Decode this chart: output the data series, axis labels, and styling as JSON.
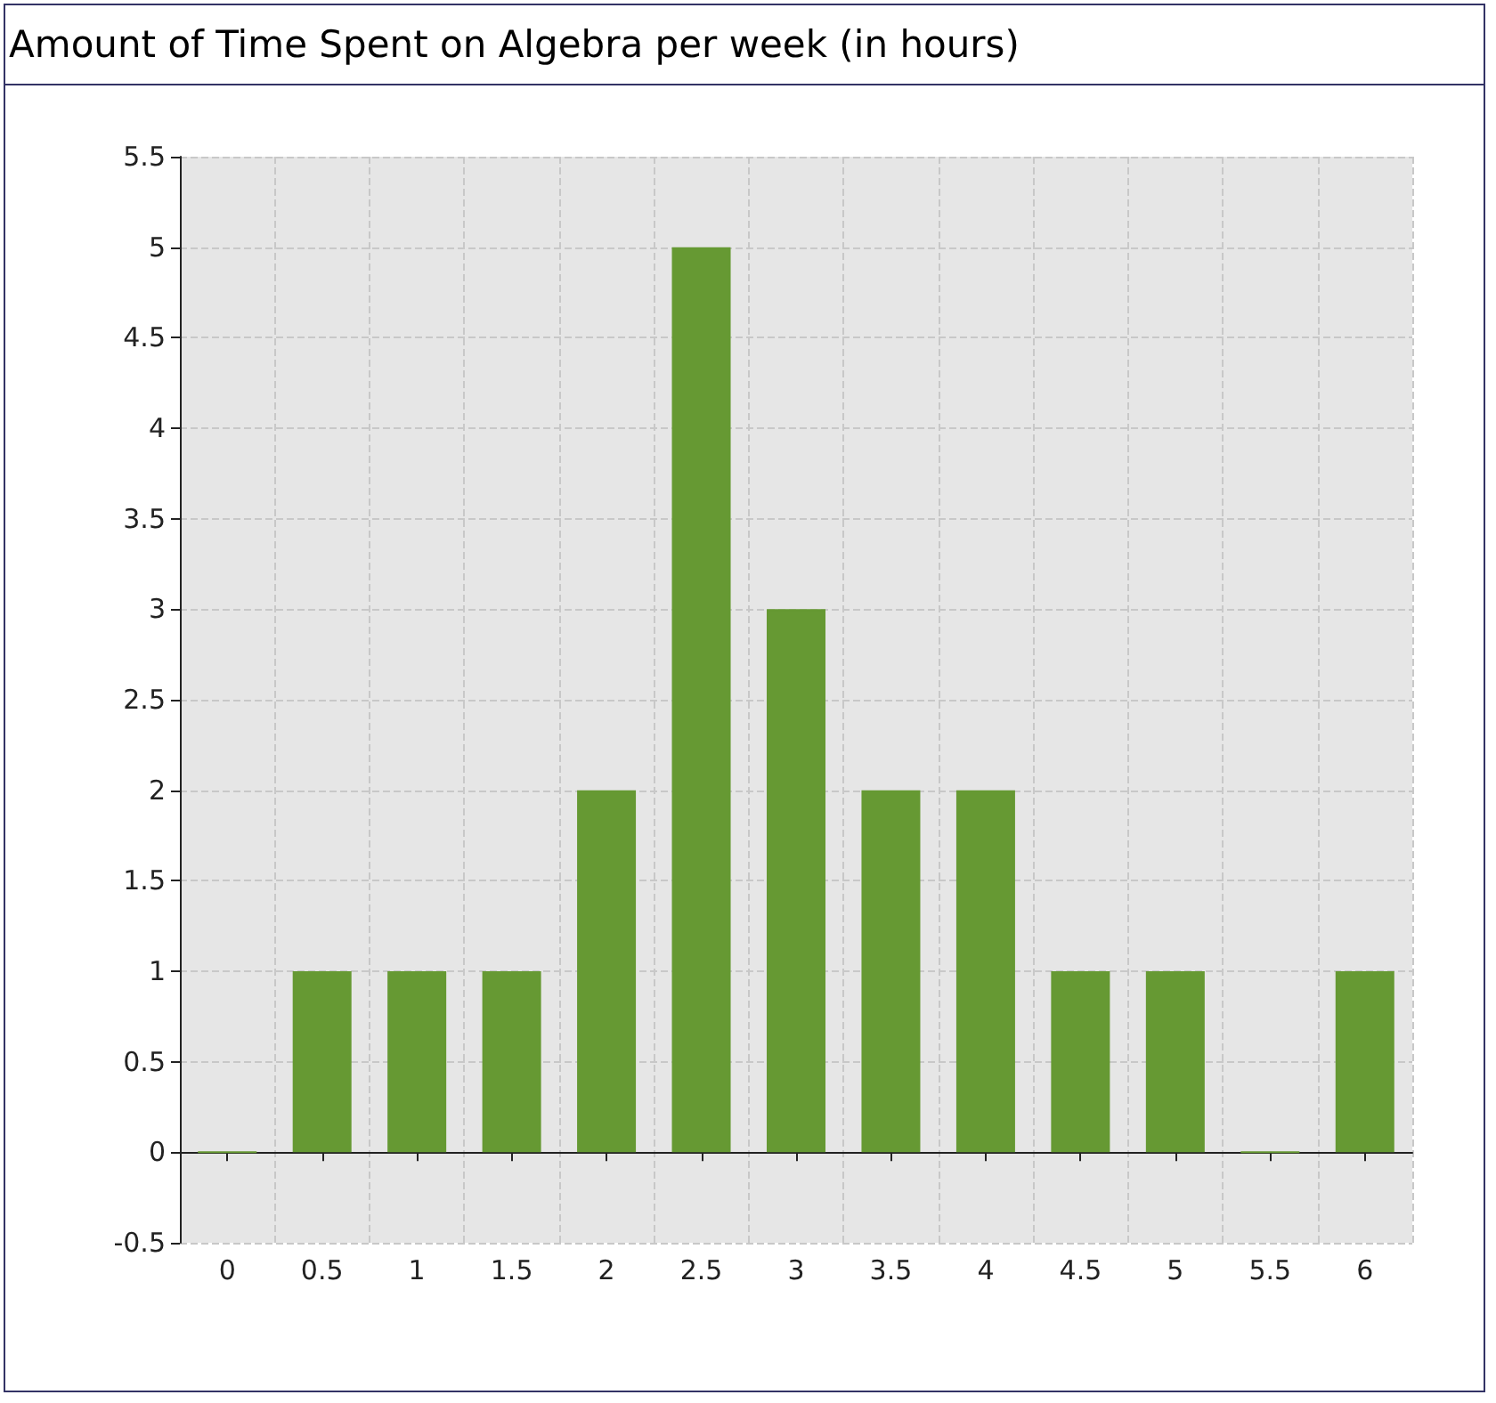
{
  "chart_data": {
    "type": "bar",
    "title": "Amount of Time Spent on Algebra per week (in hours)",
    "categories": [
      "0",
      "0.5",
      "1",
      "1.5",
      "2",
      "2.5",
      "3",
      "3.5",
      "4",
      "4.5",
      "5",
      "5.5",
      "6"
    ],
    "values": [
      0,
      1,
      1,
      1,
      2,
      5,
      3,
      2,
      2,
      1,
      1,
      0,
      1
    ],
    "color": "#669933",
    "ylim": [
      -0.5,
      5.5
    ],
    "yticks": [
      -0.5,
      0,
      0.5,
      1,
      1.5,
      2,
      2.5,
      3,
      3.5,
      4,
      4.5,
      5,
      5.5
    ],
    "grid": true
  }
}
